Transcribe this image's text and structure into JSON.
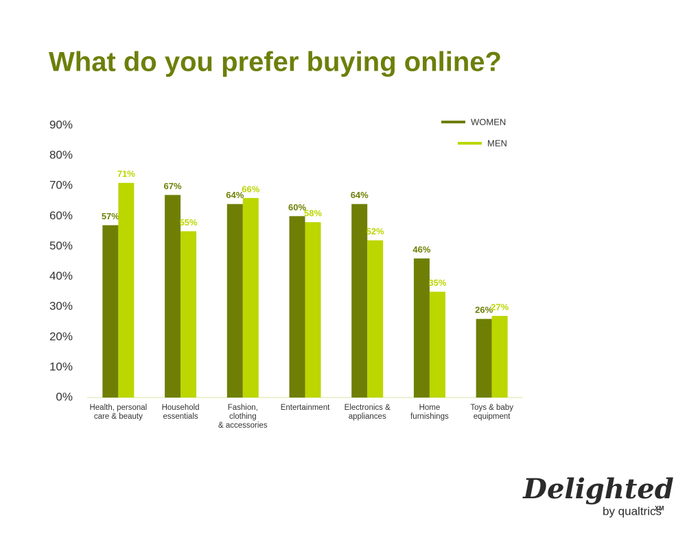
{
  "chart_data": {
    "type": "bar",
    "title": "What do you prefer buying online?",
    "categories": [
      "Health, personal\ncare & beauty",
      "Household\nessentials",
      "Fashion,\nclothing\n& accessories",
      "Entertainment",
      "Electronics &\nappliances",
      "Home\nfurnishings",
      "Toys & baby\nequipment"
    ],
    "series": [
      {
        "name": "WOMEN",
        "color": "#6f7f05",
        "values": [
          57,
          67,
          64,
          60,
          64,
          46,
          26
        ],
        "value_labels": [
          "57%",
          "67%",
          "64%",
          "60%",
          "64%",
          "46%",
          "26%"
        ]
      },
      {
        "name": "MEN",
        "color": "#bcd600",
        "values": [
          71,
          55,
          66,
          58,
          52,
          35,
          27
        ],
        "value_labels": [
          "71%",
          "55%",
          "66%",
          "58%",
          "52%",
          "35%",
          "27%"
        ]
      }
    ],
    "ylim": [
      0,
      90
    ],
    "yticks": [
      {
        "value": 0,
        "label": "0%"
      },
      {
        "value": 10,
        "label": "10%"
      },
      {
        "value": 20,
        "label": "20%"
      },
      {
        "value": 30,
        "label": "30%"
      },
      {
        "value": 40,
        "label": "40%"
      },
      {
        "value": 50,
        "label": "50%"
      },
      {
        "value": 60,
        "label": "60%"
      },
      {
        "value": 70,
        "label": "70%"
      },
      {
        "value": 80,
        "label": "80%"
      },
      {
        "value": 90,
        "label": "90%"
      }
    ],
    "grid": false,
    "legend": "top-right"
  },
  "logo": {
    "name": "Delighted",
    "sub": "by qualtrics",
    "mark": "XM"
  }
}
